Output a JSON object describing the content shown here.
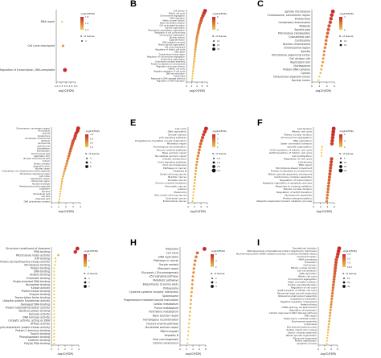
{
  "chart_data": [
    {
      "type": "scatter",
      "panel_label": "",
      "title": "",
      "xlabel": "-log10(FDR)",
      "ylabel": "",
      "x_ticks": [
        "1.0",
        "1.5",
        "2.0",
        "2.5",
        "3.0"
      ],
      "xlim": [
        1.0,
        3.0
      ],
      "categories": [
        "DNA repair",
        "Cell cycle checkpoint",
        "Regulation of transcription, DNA-templated"
      ],
      "values": [
        1.6,
        1.7,
        1.9
      ],
      "legend_color_title": "-log10(FDR)",
      "legend_color_ticks": [
        "1.4",
        "1.6",
        "1.8"
      ],
      "legend_size_title": "N. of Genes",
      "legend_size_ticks": [
        "3"
      ],
      "color_low": "#f2c94c",
      "color_high": "#c62828"
    },
    {
      "type": "scatter",
      "panel_label": "B",
      "title": "",
      "xlabel": "-log10(FDR)",
      "ylabel": "",
      "x_ticks": [
        "0",
        "2",
        "4",
        "6",
        "8"
      ],
      "xlim": [
        0,
        8
      ],
      "categories": [
        "Cell division",
        "Mitotic cell cycle",
        "Chromosome segregation",
        "DNA replication",
        "Mitotic nuclear division",
        "Sister chromatid cohesion",
        "Cell cycle phase transition",
        "Spindle organization",
        "Microtubule cytoskeleton organization",
        "Regulation of cell cycle process",
        "Chromosome organization",
        "Nuclear division",
        "Organelle fission",
        "DNA metabolic process",
        "Mitotic spindle organization",
        "Cell cycle checkpoint",
        "Regulation of mitotic cell cycle",
        "DNA repair",
        "Double-strand break repair",
        "Regulation of chromosome segregation",
        "Kinetochore organization",
        "Centromere complex assembly",
        "Protein localization to chromosome",
        "Regulation of nuclear division",
        "Meiotic cell cycle",
        "Negative regulation of cell cycle",
        "DNA recombination",
        "Cytokinesis",
        "Response to DNA damage stimulus",
        "Regulation of DNA replication"
      ],
      "values": [
        7.1,
        6.7,
        6.3,
        5.9,
        5.6,
        5.3,
        5.0,
        4.8,
        4.6,
        4.4,
        4.2,
        4.0,
        3.9,
        3.8,
        3.6,
        3.5,
        3.4,
        3.3,
        3.2,
        3.1,
        3.0,
        2.9,
        2.8,
        2.7,
        2.6,
        2.5,
        2.4,
        2.3,
        2.2,
        2.1
      ],
      "legend_color_title": "-log10(FDR)",
      "legend_color_ticks": [
        "2",
        "4",
        "6"
      ],
      "legend_size_title": "N. of Genes",
      "legend_size_ticks": [
        "10",
        "20",
        "30"
      ],
      "color_low": "#f2c94c",
      "color_high": "#c62828"
    },
    {
      "type": "scatter",
      "panel_label": "C",
      "title": "",
      "xlabel": "-log10(FDR)",
      "ylabel": "",
      "x_ticks": [
        "0",
        "2",
        "4",
        "6"
      ],
      "xlim": [
        0,
        6
      ],
      "categories": [
        "Spindle microtubule",
        "Chromosome, centromeric region",
        "Kinetochore",
        "Condensed chromosome",
        "Midbody",
        "Spindle pole",
        "Microtubule cytoskeleton",
        "Cytoskeletal part",
        "Centrosome",
        "Nuclear chromosome",
        "Chromosomal region",
        "Spindle",
        "Microtubule organizing center",
        "Cell division site",
        "Replication fork",
        "Nucleoplasm",
        "Protein-DNA complex",
        "Cytosol",
        "Intracellular organelle lumen",
        "Nuclear lumen"
      ],
      "values": [
        5.6,
        5.3,
        5.1,
        4.9,
        4.6,
        4.4,
        4.2,
        4.0,
        3.8,
        3.7,
        3.5,
        3.3,
        3.2,
        3.0,
        2.9,
        2.7,
        2.5,
        2.3,
        2.0,
        1.8
      ],
      "legend_color_title": "-log10(FDR)",
      "legend_color_ticks": [
        "2",
        "4"
      ],
      "legend_size_title": "N. of Genes",
      "legend_size_ticks": [
        "10",
        "20"
      ],
      "color_low": "#f2c94c",
      "color_high": "#c62828"
    },
    {
      "type": "scatter",
      "panel_label": "",
      "title": "",
      "xlabel": "-log10(FDR)",
      "ylabel": "",
      "x_ticks": [
        "0",
        "1",
        "2",
        "3",
        "4"
      ],
      "xlim": [
        0,
        4
      ],
      "categories": [
        "Chromosome, centromeric region",
        "Microtubule",
        "Spindle",
        "Kinetochore",
        "Condensed chromosome",
        "Midbody",
        "Centrosome",
        "Spindle pole",
        "Cytoskeleton",
        "Nucleoplasm",
        "Chromosomal part",
        "Replication fork",
        "Nuclear chromosome part",
        "Cytosol",
        "Protein complex",
        "Organelle lumen",
        "Nuclear lumen",
        "Intracellular non-membrane-bounded organelle",
        "Microtubule organizing center",
        "Cell cortex",
        "Cytoplasmic region",
        "Perinuclear region",
        "Nuclear envelope",
        "Membrane-bounded organelle",
        "Cytoplasm",
        "Nucleus",
        "Intracellular part",
        "Cell part",
        "Organelle part",
        "DNA polymerase complex"
      ],
      "values": [
        3.7,
        3.6,
        3.4,
        3.3,
        3.2,
        3.0,
        2.9,
        2.8,
        2.7,
        2.6,
        2.5,
        2.4,
        2.3,
        2.2,
        2.1,
        2.0,
        1.9,
        1.8,
        1.7,
        1.6,
        1.5,
        1.45,
        1.4,
        1.35,
        1.3,
        1.25,
        1.2,
        1.15,
        1.1,
        1.05
      ],
      "legend_color_title": "-log10(FDR)",
      "legend_color_ticks": [
        "1.5",
        "2.0",
        "2.5",
        "3.0"
      ],
      "legend_size_title": "N. of Genes",
      "legend_size_ticks": [
        "3",
        "5",
        "8"
      ],
      "color_low": "#f2c94c",
      "color_high": "#c62828"
    },
    {
      "type": "scatter",
      "panel_label": "E",
      "title": "",
      "xlabel": "-log10(FDR)",
      "ylabel": "",
      "x_ticks": [
        "0",
        "2",
        "4",
        "6"
      ],
      "xlim": [
        0,
        6
      ],
      "categories": [
        "Cell cycle",
        "DNA replication",
        "Oocyte meiosis",
        "p53 signaling pathway",
        "Progesterone-mediated oocyte maturation",
        "Mismatch repair",
        "Homologous recombination",
        "Fanconi anemia pathway",
        "Base excision repair",
        "Nucleotide excision repair",
        "Cellular senescence",
        "FoxO signaling pathway",
        "Viral carcinogenesis",
        "Pathways in cancer",
        "Hepatitis B",
        "Small cell lung cancer",
        "Bladder cancer",
        "Prostate cancer",
        "Chronic myeloid leukemia",
        "Pancreatic cancer",
        "Glioma",
        "Melanoma",
        "Non-small cell lung cancer",
        "Colorectal cancer",
        "Endometrial cancer"
      ],
      "values": [
        5.6,
        5.2,
        4.8,
        4.5,
        4.2,
        3.9,
        3.7,
        3.5,
        3.3,
        3.1,
        2.9,
        2.8,
        2.6,
        2.5,
        2.4,
        2.3,
        2.2,
        2.1,
        2.0,
        1.9,
        1.8,
        1.7,
        1.6,
        1.5,
        1.4
      ],
      "legend_color_title": "-log10(FDR)",
      "legend_color_ticks": [
        "1",
        "2",
        "3",
        "4"
      ],
      "legend_size_title": "N. of Genes",
      "legend_size_ticks": [
        "1.0",
        "1.5",
        "2.0",
        "2.5"
      ],
      "color_low": "#f2c94c",
      "color_high": "#c62828"
    },
    {
      "type": "scatter",
      "panel_label": "F",
      "title": "",
      "xlabel": "-log10(FDR)",
      "ylabel": "",
      "x_ticks": [
        "0",
        "2",
        "4",
        "6"
      ],
      "xlim": [
        0,
        6
      ],
      "categories": [
        "Cell division",
        "Mitotic cell cycle",
        "Mitotic nuclear division",
        "Chromosome segregation",
        "DNA replication",
        "Sister chromatid cohesion",
        "Spindle organization",
        "G1/S transition of mitotic cell cycle",
        "G2/M transition of mitotic cell cycle",
        "Cell proliferation",
        "Regulation of cell cycle",
        "Cytokinesis",
        "DNA repair",
        "Microtubule-based movement",
        "Protein localization to kinetochore",
        "Mitotic spindle assembly checkpoint",
        "Centromere complex assembly",
        "Regulation of transcription",
        "Negative regulation of apoptotic process",
        "Response to ionizing radiation",
        "Meiotic nuclear division",
        "Regulation of G2/M transition",
        "Nucleosome assembly",
        "Protein phosphorylation",
        "Ubiquitin-dependent protein catabolic process"
      ],
      "values": [
        5.8,
        5.7,
        5.6,
        5.5,
        5.4,
        5.3,
        2.5,
        2.4,
        2.3,
        2.3,
        5.2,
        5.1,
        5.0,
        4.9,
        4.8,
        4.7,
        4.6,
        4.5,
        4.4,
        4.3,
        4.2,
        4.1,
        4.0,
        3.9,
        3.8
      ],
      "legend_color_title": "-log10(FDR)",
      "legend_color_ticks": [
        "2",
        "4",
        "6"
      ],
      "legend_size_title": "N. of Genes",
      "legend_size_ticks": [
        "5",
        "10",
        "15",
        "20"
      ],
      "color_low": "#f2c94c",
      "color_high": "#c62828"
    },
    {
      "type": "scatter",
      "panel_label": "",
      "title": "",
      "xlabel": "-log10(FDR)",
      "ylabel": "",
      "x_ticks": [
        "0",
        "1",
        "2",
        "3",
        "4"
      ],
      "xlim": [
        0,
        4
      ],
      "categories": [
        "Structural constituent of ribosome",
        "RNA binding",
        "Microtubule motor activity",
        "ATP binding",
        "Protein serine/threonine kinase activity",
        "Microtubule binding",
        "Protein binding",
        "DNA binding",
        "Histone binding",
        "Chromatin binding",
        "Single-stranded DNA binding",
        "Nucleotide binding",
        "Kinase activity",
        "Protein kinase binding",
        "Enzyme binding",
        "Transcription factor binding",
        "Ubiquitin-protein transferase activity",
        "Damaged DNA binding",
        "Protein heterodimerization activity",
        "Identical protein binding",
        "Helicase activity",
        "DNA helicase activity",
        "Catalytic activity, acting on DNA",
        "ATPase activity",
        "Cyclin-dependent protein kinase activity",
        "Protein C-terminus binding",
        "Tubulin binding",
        "Phosphoprotein binding",
        "Cadherin binding",
        "Poly(A) RNA binding"
      ],
      "values": [
        3.8,
        3.5,
        1.0,
        0.6,
        0.6,
        0.5,
        0.4,
        0.4,
        0.4,
        0.4,
        0.4,
        0.4,
        0.4,
        0.4,
        0.4,
        0.4,
        0.4,
        0.4,
        0.4,
        0.4,
        0.4,
        0.4,
        0.4,
        0.4,
        0.4,
        0.4,
        0.4,
        0.4,
        0.4,
        0.4
      ],
      "legend_color_title": "-log10(FDR)",
      "legend_color_ticks": [
        "1",
        "2",
        "3"
      ],
      "legend_size_title": "N. of Genes",
      "legend_size_ticks": [
        "2",
        "4",
        "6"
      ],
      "color_low": "#f2c94c",
      "color_high": "#c62828"
    },
    {
      "type": "scatter",
      "panel_label": "H",
      "title": "",
      "xlabel": "-log10(FDR)",
      "ylabel": "",
      "x_ticks": [
        "0",
        "2",
        "4",
        "6",
        "8"
      ],
      "xlim": [
        0,
        8
      ],
      "categories": [
        "Ribosome",
        "Cell cycle",
        "DNA replication",
        "Pathways in cancer",
        "Oocyte meiosis",
        "Mismatch repair",
        "Glycolysis / Gluconeogenesis",
        "p53 signaling pathway",
        "Metabolic pathways",
        "Biosynthesis of amino acids",
        "Proteasome",
        "Cytokine-cytokine receptor interaction",
        "Spliceosome",
        "Progesterone-mediated oocyte maturation",
        "Carbon metabolism",
        "Purine metabolism",
        "Pyrimidine metabolism",
        "Base excision repair",
        "Homologous recombination",
        "Fanconi anemia pathway",
        "Nucleotide excision repair",
        "RNA transport",
        "Hepatitis B",
        "Viral carcinogenesis",
        "Cellular senescence"
      ],
      "values": [
        7.6,
        5.4,
        5.0,
        4.7,
        4.5,
        4.3,
        4.2,
        4.0,
        3.9,
        3.8,
        3.7,
        3.6,
        3.5,
        3.4,
        3.3,
        3.2,
        3.1,
        3.0,
        2.9,
        2.8,
        2.7,
        2.6,
        2.5,
        2.4,
        2.3
      ],
      "legend_color_title": "-log10(FDR)",
      "legend_color_ticks": [
        "2",
        "4",
        "6"
      ],
      "legend_size_title": "N. of Genes",
      "legend_size_ticks": [
        "2",
        "3",
        "4"
      ],
      "color_low": "#f2c94c",
      "color_high": "#c62828"
    },
    {
      "type": "scatter",
      "panel_label": "I",
      "title": "",
      "xlabel": "-log10(FDR)",
      "ylabel": "",
      "x_ticks": [
        "0",
        "2",
        "4",
        "6"
      ],
      "xlim": [
        0,
        6
      ],
      "categories": [
        "Translational initiation",
        "SRP-dependent cotranslational protein targeting to membrane",
        "Nuclear-transcribed mRNA catabolic process, nonsense-mediated decay",
        "Viral transcription",
        "rRNA processing",
        "Translation",
        "Cell division",
        "Mitotic nuclear division",
        "Cell-cell adhesion",
        "DNA replication",
        "Mitotic cell cycle",
        "Chromosome segregation",
        "Sister chromatid cohesion",
        "Protein polyubiquitination",
        "Regulation of cell cycle",
        "G2/M transition of mitotic cell cycle",
        "Ribosomal large subunit biogenesis",
        "Ribosomal small subunit assembly",
        "Cytoplasmic translation",
        "Negative regulation of apoptosis",
        "Protein folding",
        "mRNA splicing, via spliceosome",
        "Regulation of translation",
        "Cellular response to DNA damage stimulus",
        "DNA repair",
        "Response to unfolded protein",
        "Nucleosome assembly",
        "Cytokinesis",
        "Microtubule-based process",
        "Protein import into nucleus",
        "Tubulin complex assembly",
        "Mitotic spindle organization",
        "Ribosome biogenesis",
        "Protein stabilization",
        "Apoptotic process"
      ],
      "values": [
        6.5,
        6.3,
        6.1,
        5.9,
        5.6,
        5.5,
        5.4,
        5.3,
        5.2,
        5.1,
        5.0,
        4.9,
        4.8,
        4.7,
        4.6,
        4.5,
        4.4,
        4.3,
        4.2,
        4.1,
        4.0,
        3.9,
        3.8,
        3.7,
        3.6,
        3.5,
        3.4,
        3.3,
        3.2,
        3.1,
        3.0,
        2.9,
        2.8,
        2.7,
        2.6
      ],
      "legend_color_title": "-log10(FDR)",
      "legend_color_ticks": [
        "10.0",
        "7.5",
        "5.0",
        "2.5"
      ],
      "legend_size_title": "N. of Genes",
      "legend_size_ticks": [
        "10",
        "20",
        "30"
      ],
      "color_low": "#f2c94c",
      "color_high": "#c62828"
    }
  ]
}
